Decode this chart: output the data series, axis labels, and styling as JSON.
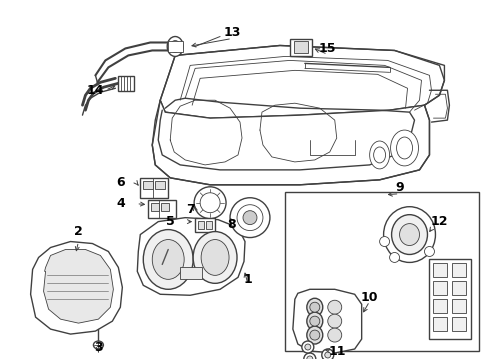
{
  "background_color": "#ffffff",
  "line_color": "#404040",
  "label_color": "#000000",
  "fig_w": 4.89,
  "fig_h": 3.6,
  "dpi": 100
}
